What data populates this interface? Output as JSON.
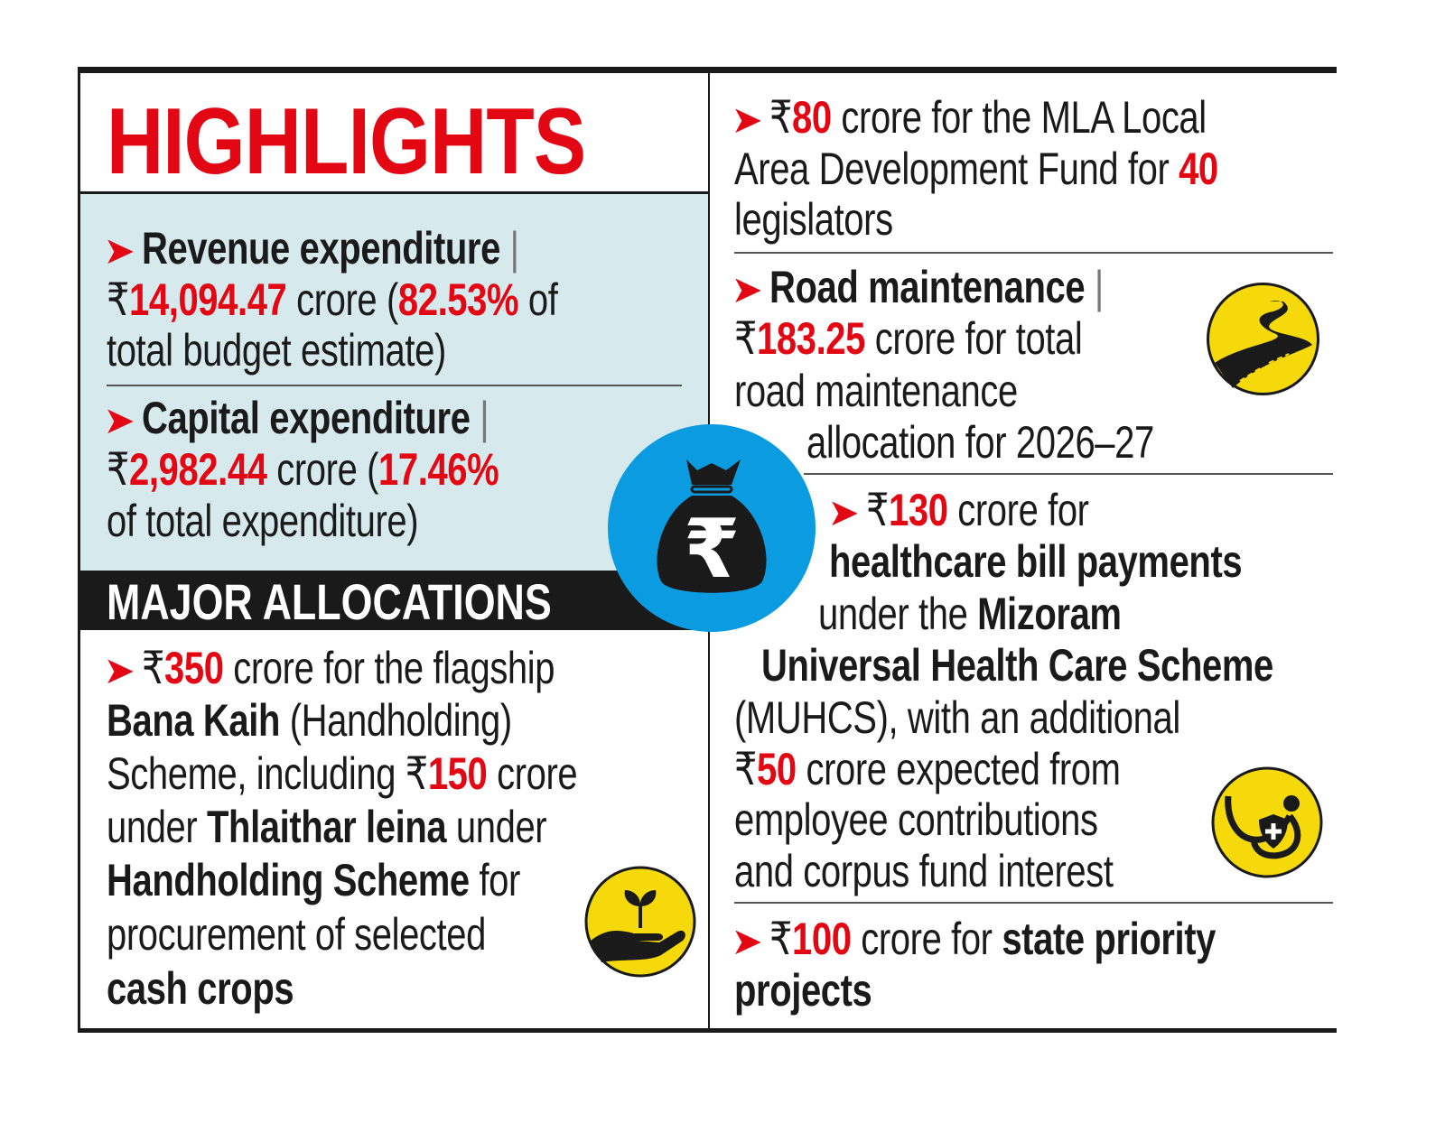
{
  "header": {
    "title": "HIGHLIGHTS"
  },
  "colors": {
    "accent_red": "#e30613",
    "panel_blue": "#d6e9ed",
    "badge_blue": "#0a9be0",
    "icon_yellow": "#f5d90a"
  },
  "icons": [
    "money-bag-rupee-icon",
    "winding-road-icon",
    "stethoscope-health-icon",
    "plant-in-hand-icon"
  ],
  "expenditure": [
    {
      "lines": [
        [
          {
            "s": "arrow",
            "t": "➤"
          },
          {
            "s": "b",
            "t": "Revenue expenditure "
          },
          {
            "s": "pipe",
            "t": "|"
          }
        ],
        [
          {
            "s": "r",
            "t": "₹"
          },
          {
            "s": "red",
            "t": "14,094.47"
          },
          {
            "s": "r",
            "t": " crore ("
          },
          {
            "s": "red",
            "t": "82.53%"
          },
          {
            "s": "r",
            "t": " of"
          }
        ],
        [
          {
            "s": "r",
            "t": "total budget estimate)"
          }
        ]
      ]
    },
    {
      "lines": [
        [
          {
            "s": "arrow",
            "t": "➤"
          },
          {
            "s": "b",
            "t": "Capital expenditure "
          },
          {
            "s": "pipe",
            "t": "|"
          }
        ],
        [
          {
            "s": "r",
            "t": "₹"
          },
          {
            "s": "red",
            "t": "2,982.44"
          },
          {
            "s": "r",
            "t": " crore ("
          },
          {
            "s": "red",
            "t": "17.46%"
          }
        ],
        [
          {
            "s": "r",
            "t": "of total expenditure)"
          }
        ]
      ]
    }
  ],
  "major_allocations": {
    "heading": "MAJOR ALLOCATIONS",
    "lines": [
      [
        {
          "s": "arrow",
          "t": "➤"
        },
        {
          "s": "r",
          "t": "₹"
        },
        {
          "s": "red",
          "t": "350"
        },
        {
          "s": "r",
          "t": " crore for the flagship"
        }
      ],
      [
        {
          "s": "b",
          "t": "Bana Kaih"
        },
        {
          "s": "r",
          "t": " (Handholding)"
        }
      ],
      [
        {
          "s": "r",
          "t": "Scheme, including ₹"
        },
        {
          "s": "red",
          "t": "150"
        },
        {
          "s": "r",
          "t": " crore"
        }
      ],
      [
        {
          "s": "r",
          "t": "under "
        },
        {
          "s": "b",
          "t": "Thlaithar leina"
        },
        {
          "s": "r",
          "t": " under"
        }
      ],
      [
        {
          "s": "b",
          "t": "Handholding Scheme"
        },
        {
          "s": "r",
          "t": " for"
        }
      ],
      [
        {
          "s": "r",
          "t": "procurement of selected"
        }
      ],
      [
        {
          "s": "b",
          "t": "cash crops"
        }
      ]
    ]
  },
  "right": {
    "mla": [
      [
        {
          "s": "arrow",
          "t": "➤"
        },
        {
          "s": "r",
          "t": "₹"
        },
        {
          "s": "red",
          "t": "80"
        },
        {
          "s": "r",
          "t": " crore for the MLA Local"
        }
      ],
      [
        {
          "s": "r",
          "t": "Area Development Fund for "
        },
        {
          "s": "red",
          "t": "40"
        }
      ],
      [
        {
          "s": "r",
          "t": "legislators"
        }
      ]
    ],
    "road": [
      [
        {
          "s": "arrow",
          "t": "➤"
        },
        {
          "s": "b",
          "t": "Road maintenance "
        },
        {
          "s": "pipe",
          "t": "|"
        }
      ],
      [
        {
          "s": "r",
          "t": "₹"
        },
        {
          "s": "red",
          "t": "183.25"
        },
        {
          "s": "r",
          "t": " crore for total"
        }
      ],
      [
        {
          "s": "r",
          "t": "road maintenance"
        }
      ],
      [
        {
          "s": "r",
          "t": "allocation for 2026–27"
        }
      ]
    ],
    "health": [
      [
        {
          "s": "arrow",
          "t": "➤"
        },
        {
          "s": "r",
          "t": "₹"
        },
        {
          "s": "red",
          "t": "130"
        },
        {
          "s": "r",
          "t": " crore for"
        }
      ],
      [
        {
          "s": "b",
          "t": "healthcare bill payments"
        }
      ],
      [
        {
          "s": "r",
          "t": "under the "
        },
        {
          "s": "b",
          "t": "Mizoram"
        }
      ],
      [
        {
          "s": "b",
          "t": "Universal Health Care Scheme"
        }
      ],
      [
        {
          "s": "r",
          "t": "(MUHCS), with an additional"
        }
      ],
      [
        {
          "s": "r",
          "t": "₹"
        },
        {
          "s": "red",
          "t": "50"
        },
        {
          "s": "r",
          "t": " crore expected from"
        }
      ],
      [
        {
          "s": "r",
          "t": "employee contributions"
        }
      ],
      [
        {
          "s": "r",
          "t": "and corpus fund interest"
        }
      ]
    ],
    "priority": [
      [
        {
          "s": "arrow",
          "t": "➤"
        },
        {
          "s": "r",
          "t": "₹"
        },
        {
          "s": "red",
          "t": "100"
        },
        {
          "s": "r",
          "t": " crore for "
        },
        {
          "s": "b",
          "t": "state priority"
        }
      ],
      [
        {
          "s": "b",
          "t": "projects"
        }
      ]
    ]
  }
}
